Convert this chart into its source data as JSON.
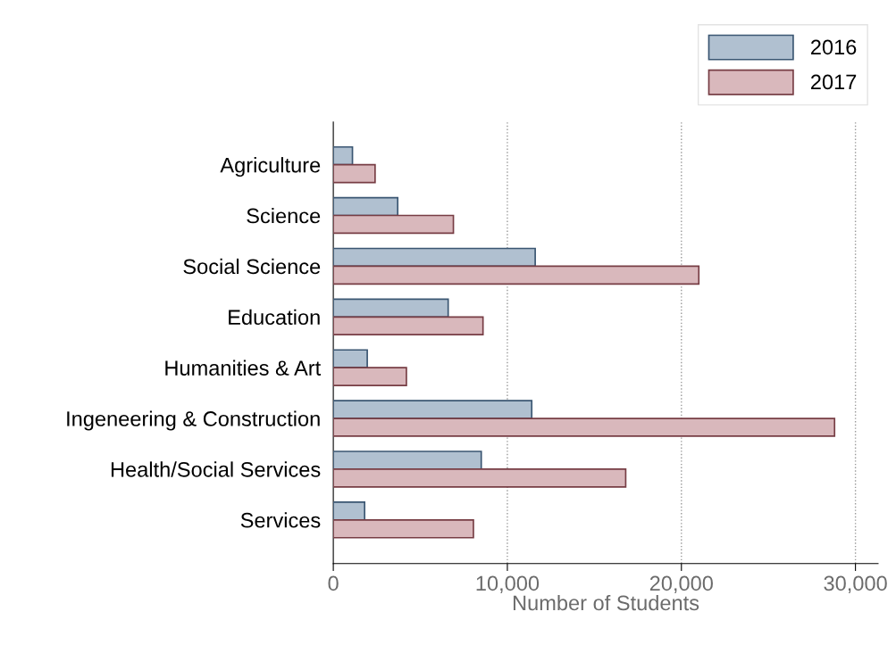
{
  "chart_data": {
    "type": "bar",
    "orientation": "horizontal",
    "xlabel": "Number of Students",
    "categories": [
      "Agriculture",
      "Science",
      "Social Science",
      "Education",
      "Humanities & Art",
      "Ingeneering & Construction",
      "Health/Social Services",
      "Services"
    ],
    "series": [
      {
        "name": "2016",
        "color": "#b0c0d0",
        "values": [
          1100,
          3700,
          11600,
          6600,
          1950,
          11400,
          8500,
          1800
        ]
      },
      {
        "name": "2017",
        "color": "#d9b8bc",
        "values": [
          2400,
          6900,
          21000,
          8600,
          4200,
          28800,
          16800,
          8050
        ]
      }
    ],
    "xlim": [
      0,
      31300
    ],
    "xticks": [
      {
        "value": 0,
        "label": "0"
      },
      {
        "value": 10000,
        "label": "10,000"
      },
      {
        "value": 20000,
        "label": "20,000"
      },
      {
        "value": 30000,
        "label": "30,000"
      }
    ],
    "grid": "x",
    "legend": "top right"
  }
}
